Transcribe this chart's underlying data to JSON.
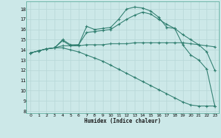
{
  "background_color": "#cce8e8",
  "grid_color": "#b8d8d8",
  "line_color": "#2e7d6e",
  "xlabel": "Humidex (Indice chaleur)",
  "xlim": [
    -0.5,
    23.5
  ],
  "ylim": [
    7.8,
    18.75
  ],
  "yticks": [
    8,
    9,
    10,
    11,
    12,
    13,
    14,
    15,
    16,
    17,
    18
  ],
  "xticks": [
    0,
    1,
    2,
    3,
    4,
    5,
    6,
    7,
    8,
    9,
    10,
    11,
    12,
    13,
    14,
    15,
    16,
    17,
    18,
    19,
    20,
    21,
    22,
    23
  ],
  "series": [
    {
      "x": [
        0,
        1,
        2,
        3,
        4,
        5,
        6,
        7,
        8,
        9,
        10,
        11,
        12,
        13,
        14,
        15,
        16,
        17,
        18,
        19,
        20,
        21,
        22,
        23
      ],
      "y": [
        13.7,
        13.9,
        14.1,
        14.2,
        14.9,
        14.4,
        14.5,
        16.3,
        16.0,
        16.1,
        16.2,
        17.0,
        18.0,
        18.2,
        18.1,
        17.8,
        17.2,
        16.2,
        16.1,
        14.5,
        13.5,
        13.0,
        12.1,
        8.5
      ]
    },
    {
      "x": [
        0,
        1,
        2,
        3,
        4,
        5,
        6,
        7,
        8,
        9,
        10,
        11,
        12,
        13,
        14,
        15,
        16,
        17,
        18,
        19,
        20,
        21,
        22,
        23
      ],
      "y": [
        13.7,
        13.9,
        14.1,
        14.2,
        15.0,
        14.5,
        14.5,
        15.7,
        15.8,
        15.9,
        16.0,
        16.5,
        17.0,
        17.4,
        17.7,
        17.5,
        17.0,
        16.5,
        16.1,
        15.5,
        15.0,
        14.5,
        13.8,
        12.0
      ]
    },
    {
      "x": [
        0,
        1,
        2,
        3,
        4,
        5,
        6,
        7,
        8,
        9,
        10,
        11,
        12,
        13,
        14,
        15,
        16,
        17,
        18,
        19,
        20,
        21,
        22,
        23
      ],
      "y": [
        13.7,
        13.9,
        14.1,
        14.2,
        14.4,
        14.4,
        14.4,
        14.5,
        14.5,
        14.5,
        14.6,
        14.6,
        14.6,
        14.7,
        14.7,
        14.7,
        14.7,
        14.7,
        14.7,
        14.7,
        14.6,
        14.5,
        14.4,
        14.3
      ]
    },
    {
      "x": [
        0,
        1,
        2,
        3,
        4,
        5,
        6,
        7,
        8,
        9,
        10,
        11,
        12,
        13,
        14,
        15,
        16,
        17,
        18,
        19,
        20,
        21,
        22,
        23
      ],
      "y": [
        13.7,
        13.9,
        14.1,
        14.2,
        14.2,
        14.0,
        13.8,
        13.5,
        13.2,
        12.9,
        12.5,
        12.1,
        11.7,
        11.3,
        10.9,
        10.5,
        10.1,
        9.7,
        9.3,
        8.9,
        8.6,
        8.5,
        8.5,
        8.5
      ]
    }
  ]
}
